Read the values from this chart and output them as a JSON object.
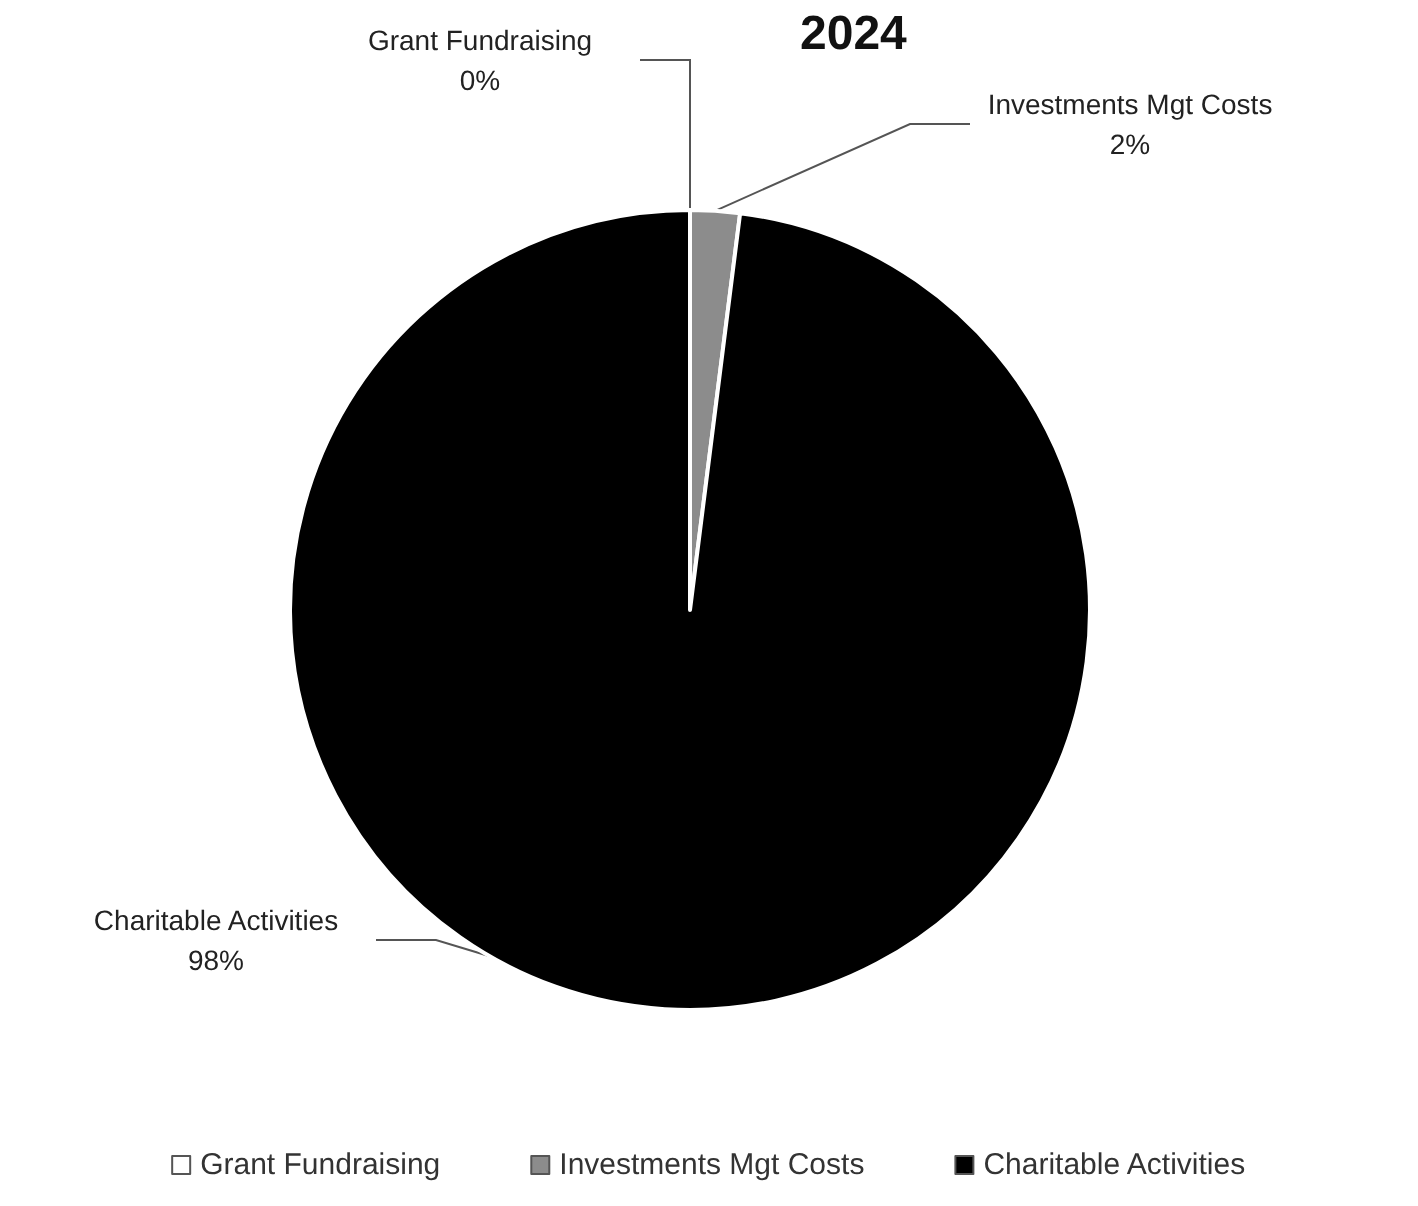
{
  "chart_data": {
    "type": "pie",
    "title": "2024",
    "categories": [
      "Grant Fundraising",
      "Investments Mgt Costs",
      "Charitable Activities"
    ],
    "values": [
      0,
      2,
      98
    ],
    "colors": [
      "#ffffff",
      "#8c8c8c",
      "#000000"
    ],
    "legend": "bottom",
    "value_labels": [
      "0%",
      "2%",
      "98%"
    ]
  }
}
